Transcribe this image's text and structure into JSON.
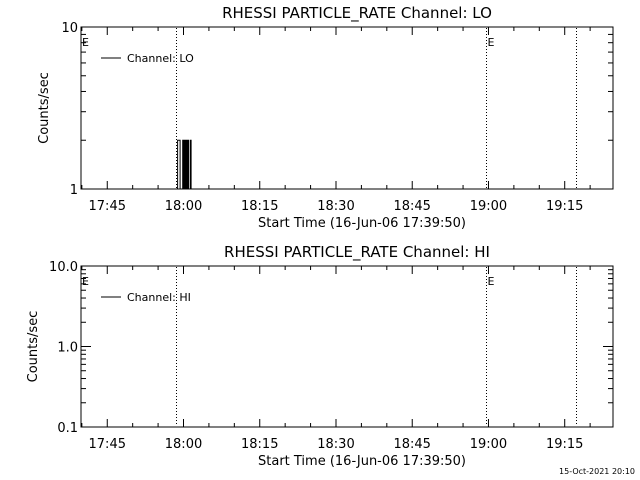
{
  "chart_data": [
    {
      "type": "line",
      "title": "RHESSI PARTICLE_RATE Channel: LO",
      "xlabel": "Start Time (16-Jun-06 17:39:50)",
      "ylabel": "Counts/sec",
      "yscale": "log",
      "ylim": [
        1,
        10
      ],
      "y_ticks": [
        "1",
        "10"
      ],
      "xlim": [
        "17:39:50",
        "19:24:30"
      ],
      "x_ticks": [
        "17:45",
        "18:00",
        "18:15",
        "18:30",
        "18:45",
        "19:00",
        "19:15"
      ],
      "legend": "Channel: LO",
      "markers": [
        {
          "time": "17:58:30",
          "label": ""
        },
        {
          "time": "18:59:30",
          "label": "E"
        },
        {
          "time": "19:17:10",
          "label": ""
        }
      ],
      "edge_marker": "E",
      "series": [
        {
          "name": "Channel: LO",
          "x": [
            "17:58:40",
            "17:58:50",
            "17:59:00",
            "17:59:10",
            "17:59:20",
            "17:59:30",
            "17:59:40",
            "17:59:50",
            "18:00:00",
            "18:00:10",
            "18:00:20",
            "18:00:30",
            "18:00:40",
            "18:00:50",
            "18:01:00",
            "18:01:10",
            "18:01:20",
            "18:01:30",
            "18:01:40"
          ],
          "values": [
            1,
            2,
            2,
            2,
            1,
            1,
            1,
            2,
            1,
            2,
            1,
            2,
            1,
            2,
            1,
            1,
            2,
            1,
            1
          ]
        }
      ]
    },
    {
      "type": "line",
      "title": "RHESSI PARTICLE_RATE Channel: HI",
      "xlabel": "Start Time (16-Jun-06 17:39:50)",
      "ylabel": "Counts/sec",
      "yscale": "log",
      "ylim": [
        0.1,
        10
      ],
      "y_ticks": [
        "0.1",
        "1.0",
        "10.0"
      ],
      "xlim": [
        "17:39:50",
        "19:24:30"
      ],
      "x_ticks": [
        "17:45",
        "18:00",
        "18:15",
        "18:30",
        "18:45",
        "19:00",
        "19:15"
      ],
      "legend": "Channel: HI",
      "markers": [
        {
          "time": "17:58:30",
          "label": ""
        },
        {
          "time": "18:59:30",
          "label": "E"
        },
        {
          "time": "19:17:10",
          "label": ""
        }
      ],
      "edge_marker": "E",
      "series": [
        {
          "name": "Channel: HI",
          "x": [],
          "values": []
        }
      ]
    }
  ],
  "footer": {
    "timestamp": "15-Oct-2021 20:10"
  }
}
